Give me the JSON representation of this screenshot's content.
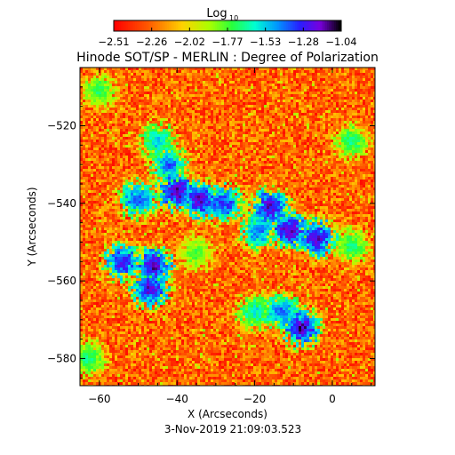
{
  "chart_data": {
    "type": "heatmap",
    "title": "Hinode SOT/SP - MERLIN : Degree of Polarization",
    "colorbar": {
      "label_base": "Log",
      "label_sub": "10",
      "ticks": [
        "-2.51",
        "-2.26",
        "-2.02",
        "-1.77",
        "-1.53",
        "-1.28",
        "-1.04"
      ],
      "range": [
        -2.51,
        -1.04
      ],
      "colormap": "rainbow (red to violet to black)"
    },
    "xlabel": "X (Arcseconds)",
    "ylabel": "Y (Arcseconds)",
    "xlim": [
      -65,
      11
    ],
    "ylim": [
      -587,
      -505
    ],
    "xticks": [
      -60,
      -40,
      -20,
      0
    ],
    "yticks": [
      -520,
      -540,
      -560,
      -580
    ],
    "xtick_labels": [
      "−60",
      "−40",
      "−20",
      "0"
    ],
    "ytick_labels": [
      "−520",
      "−540",
      "−560",
      "−580"
    ],
    "timestamp": "3-Nov-2019 21:09:03.523",
    "features": [
      {
        "x": -40,
        "y": -537,
        "level": -1.04
      },
      {
        "x": -34,
        "y": -539,
        "level": -1.06
      },
      {
        "x": -28,
        "y": -540,
        "level": -1.2
      },
      {
        "x": -42,
        "y": -530,
        "level": -1.3
      },
      {
        "x": -45,
        "y": -524,
        "level": -1.45
      },
      {
        "x": -50,
        "y": -539,
        "level": -1.25
      },
      {
        "x": -16,
        "y": -541,
        "level": -1.08
      },
      {
        "x": -11,
        "y": -547,
        "level": -1.04
      },
      {
        "x": -4,
        "y": -549,
        "level": -1.08
      },
      {
        "x": -19,
        "y": -547,
        "level": -1.3
      },
      {
        "x": 5,
        "y": -524,
        "level": -1.6
      },
      {
        "x": -46,
        "y": -556,
        "level": -1.06
      },
      {
        "x": -54,
        "y": -555,
        "level": -1.15
      },
      {
        "x": -47,
        "y": -562,
        "level": -1.1
      },
      {
        "x": -8,
        "y": -572,
        "level": -1.05
      },
      {
        "x": -13,
        "y": -568,
        "level": -1.3
      },
      {
        "x": -20,
        "y": -568,
        "level": -1.5
      },
      {
        "x": 5,
        "y": -551,
        "level": -1.6
      },
      {
        "x": -63,
        "y": -580,
        "level": -1.6
      },
      {
        "x": -60,
        "y": -511,
        "level": -1.65
      },
      {
        "x": -35,
        "y": -553,
        "level": -1.7
      }
    ]
  }
}
